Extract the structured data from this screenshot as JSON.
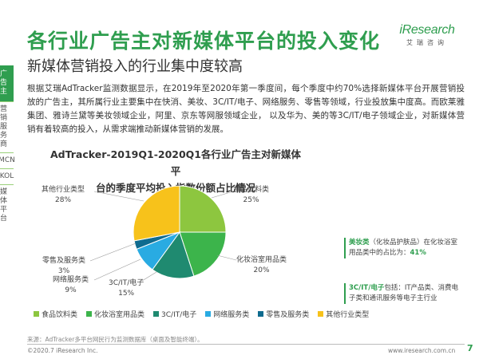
{
  "header": {
    "title": "各行业广告主对新媒体平台的投入变化",
    "subtitle": "新媒体营销投入的行业集中度较高",
    "logo_word": "iResearch",
    "logo_cn": "艾瑞咨询"
  },
  "sidebar": {
    "items": [
      {
        "label": "广告主",
        "active": true
      },
      {
        "label": "营销服务商",
        "active": false
      },
      {
        "label": "MCN",
        "active": false
      },
      {
        "label": "KOL",
        "active": false
      },
      {
        "label": "媒体平台",
        "active": false
      }
    ]
  },
  "paragraph": "根据艾瑞AdTracker监测数据显示，在2019年至2020年第一季度间，每个季度中约70%选择新媒体平台开展营销投放的广告主，其所属行业主要集中在快消、美妆、3C/IT/电子、网络服务、零售等领域，行业投放集中度高。而欧莱雅集团、雅诗兰黛等美妆领域企业，阿里、京东等网服领域企业， 以及华为、美的等3C/IT/电子领域企业，对新媒体营销有着较高的投入，从需求端推动新媒体营销的发展。",
  "chart_data": {
    "type": "pie",
    "title_line1": "AdTracker-2019Q1-2020Q1各行业广告主对新媒体平",
    "title_line2": "台的季度平均投入指数份额占比情况",
    "slices": [
      {
        "label": "食品饮料类",
        "value": 25,
        "value_label": "25%",
        "color": "#8dc63f"
      },
      {
        "label": "化妆浴室用品类",
        "value": 20,
        "value_label": "20%",
        "color": "#3cb44b"
      },
      {
        "label": "3C/IT/电子",
        "value": 15,
        "value_label": "15%",
        "color": "#1f8a70"
      },
      {
        "label": "网络服务类",
        "value": 9,
        "value_label": "9%",
        "color": "#29abe2"
      },
      {
        "label": "零售及服务类",
        "value": 3,
        "value_label": "3%",
        "color": "#0f6b8f"
      },
      {
        "label": "其他行业类型",
        "value": 28,
        "value_label": "28%",
        "color": "#f7c21b"
      }
    ],
    "legend_position": "bottom"
  },
  "notes": {
    "note1_hl": "美妆类",
    "note1_text": "（化妆品护肤品）在化妆浴室用品类中的占比为：",
    "note1_value": "41%",
    "note2_hl": "3C/IT/电子",
    "note2_text": "包括：IT产品类、消费电子类和通讯服务等电子主行业"
  },
  "footer": {
    "source": "来源：AdTracker多平台网民行为监测数据库（桌面及智能终端）。",
    "copyright": "©2020.7 iResearch Inc.",
    "url": "www.iresearch.com.cn",
    "page": "7"
  }
}
